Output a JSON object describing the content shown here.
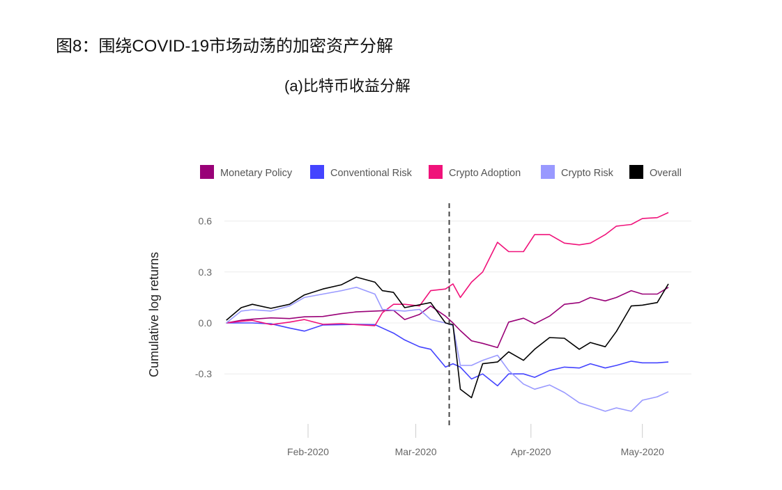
{
  "header": {
    "title": "图8：围绕COVID-19市场动荡的加密资产分解",
    "subtitle": "(a)比特币收益分解"
  },
  "chart_data": {
    "type": "line",
    "title": "",
    "xlabel": "",
    "ylabel": "Cumulative log returns",
    "ylim": [
      -0.6,
      0.7
    ],
    "yticks": [
      0.6,
      0.3,
      0.0,
      -0.3
    ],
    "ytick_labels": [
      "0.6",
      "0.3",
      "0.0",
      "-0.3"
    ],
    "xticks": [
      "2020-02-01",
      "2020-03-01",
      "2020-04-01",
      "2020-05-01"
    ],
    "xtick_labels": [
      "Feb-2020",
      "Mar-2020",
      "Apr-2020",
      "May-2020"
    ],
    "grid": "horizontal",
    "legend_position": "top",
    "vertical_marker": {
      "date": "2020-03-10",
      "style": "dashed"
    },
    "x": [
      "2020-01-10",
      "2020-01-14",
      "2020-01-17",
      "2020-01-22",
      "2020-01-27",
      "2020-01-31",
      "2020-02-05",
      "2020-02-10",
      "2020-02-14",
      "2020-02-19",
      "2020-02-21",
      "2020-02-24",
      "2020-02-27",
      "2020-03-02",
      "2020-03-05",
      "2020-03-09",
      "2020-03-11",
      "2020-03-13",
      "2020-03-16",
      "2020-03-19",
      "2020-03-23",
      "2020-03-26",
      "2020-03-30",
      "2020-04-02",
      "2020-04-06",
      "2020-04-10",
      "2020-04-14",
      "2020-04-17",
      "2020-04-21",
      "2020-04-24",
      "2020-04-28",
      "2020-05-01",
      "2020-05-05",
      "2020-05-08"
    ],
    "series": [
      {
        "name": "Monetary Policy",
        "color": "#990077",
        "values": [
          0,
          0.016,
          0.022,
          0.03,
          0.026,
          0.036,
          0.038,
          0.055,
          0.065,
          0.07,
          0.072,
          0.074,
          0.02,
          0.05,
          0.1,
          0.04,
          0.0,
          -0.045,
          -0.105,
          -0.12,
          -0.145,
          0.005,
          0.028,
          -0.005,
          0.04,
          0.11,
          0.12,
          0.15,
          0.13,
          0.15,
          0.19,
          0.17,
          0.17,
          0.21
        ]
      },
      {
        "name": "Conventional Risk",
        "color": "#4444ff",
        "values": [
          0,
          0,
          0,
          -0.005,
          -0.03,
          -0.048,
          -0.012,
          -0.01,
          -0.008,
          -0.01,
          -0.03,
          -0.06,
          -0.1,
          -0.14,
          -0.155,
          -0.26,
          -0.24,
          -0.26,
          -0.33,
          -0.3,
          -0.37,
          -0.3,
          -0.3,
          -0.32,
          -0.28,
          -0.26,
          -0.265,
          -0.24,
          -0.265,
          -0.25,
          -0.225,
          -0.235,
          -0.235,
          -0.23
        ]
      },
      {
        "name": "Crypto Adoption",
        "color": "#f0127a",
        "values": [
          0,
          0.01,
          0.015,
          -0.01,
          0.005,
          0.02,
          -0.008,
          -0.004,
          -0.01,
          -0.016,
          0.06,
          0.11,
          0.11,
          0.1,
          0.19,
          0.2,
          0.23,
          0.15,
          0.24,
          0.3,
          0.475,
          0.42,
          0.42,
          0.52,
          0.52,
          0.47,
          0.46,
          0.47,
          0.52,
          0.57,
          0.58,
          0.615,
          0.62,
          0.65
        ]
      },
      {
        "name": "Crypto Risk",
        "color": "#9999ff",
        "values": [
          0,
          0.07,
          0.078,
          0.07,
          0.1,
          0.15,
          0.17,
          0.19,
          0.21,
          0.17,
          0.08,
          0.075,
          0.07,
          0.08,
          0.02,
          0.0,
          -0.016,
          -0.25,
          -0.25,
          -0.22,
          -0.19,
          -0.28,
          -0.36,
          -0.39,
          -0.365,
          -0.41,
          -0.47,
          -0.49,
          -0.52,
          -0.5,
          -0.52,
          -0.455,
          -0.435,
          -0.405
        ]
      },
      {
        "name": "Overall",
        "color": "#000000",
        "values": [
          0.016,
          0.09,
          0.11,
          0.086,
          0.11,
          0.165,
          0.2,
          0.225,
          0.27,
          0.24,
          0.19,
          0.18,
          0.09,
          0.107,
          0.12,
          0.0,
          -0.01,
          -0.39,
          -0.44,
          -0.24,
          -0.23,
          -0.17,
          -0.22,
          -0.155,
          -0.086,
          -0.09,
          -0.155,
          -0.115,
          -0.14,
          -0.05,
          0.1,
          0.105,
          0.12,
          0.23
        ]
      }
    ]
  }
}
